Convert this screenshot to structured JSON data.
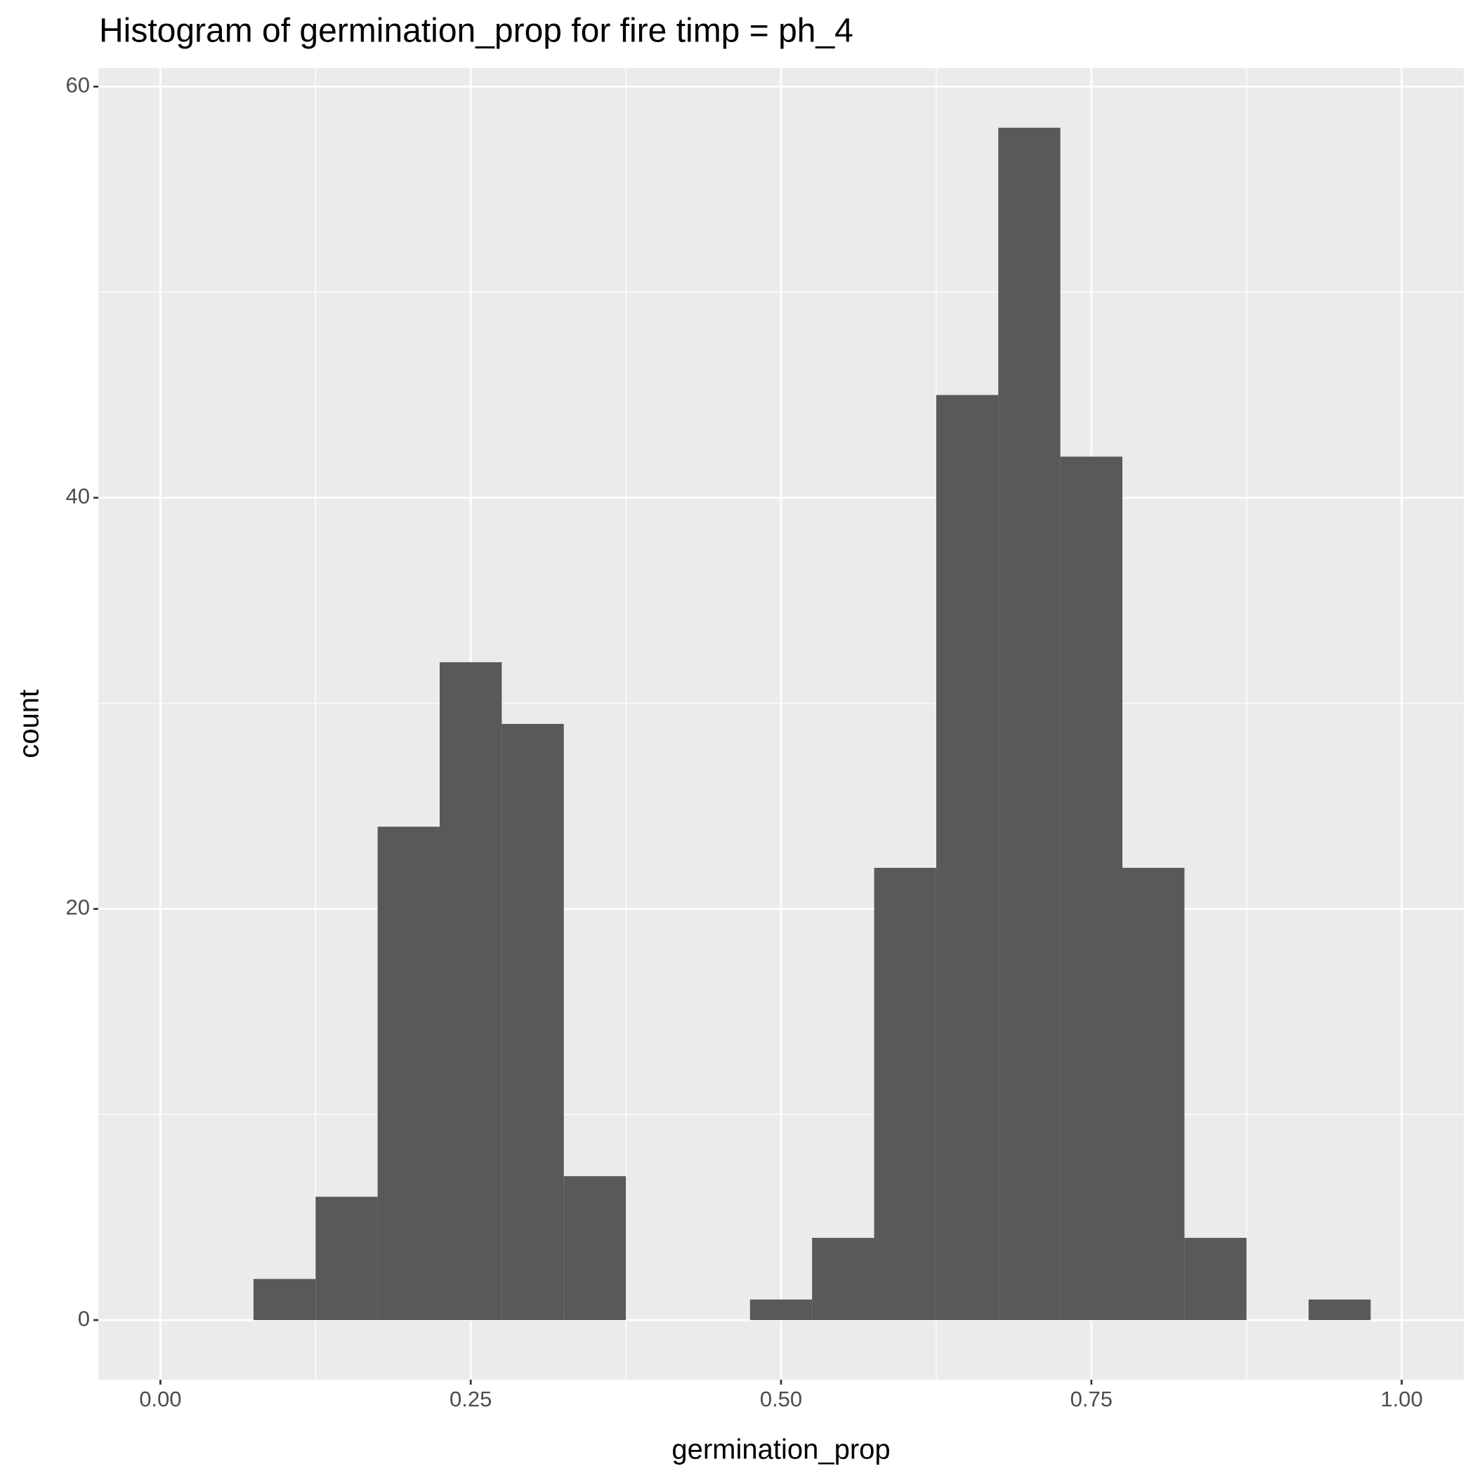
{
  "chart_data": {
    "type": "histogram",
    "title": "Histogram of germination_prop for fire timp =  ph_4",
    "x_label": "germination_prop",
    "y_label": "count",
    "bins": [
      0.075,
      0.125,
      0.175,
      0.225,
      0.275,
      0.325,
      0.375,
      0.425,
      0.475,
      0.525,
      0.575,
      0.625,
      0.675,
      0.725,
      0.775,
      0.825,
      0.875,
      0.925,
      0.975
    ],
    "counts": [
      2,
      6,
      24,
      32,
      29,
      7,
      0,
      0,
      1,
      4,
      22,
      45,
      58,
      42,
      22,
      4,
      0,
      1
    ],
    "color": "#595959",
    "xlim": [
      -0.05,
      1.05
    ],
    "xticks": [
      {
        "value": 0,
        "label": "0.00"
      },
      {
        "value": 0.25,
        "label": "0.25"
      },
      {
        "value": 0.5,
        "label": "0.50"
      },
      {
        "value": 0.75,
        "label": "0.75"
      },
      {
        "value": 1,
        "label": "1.00"
      }
    ],
    "ylim": [
      -2.9,
      60.9
    ],
    "yticks": [
      0,
      20,
      40,
      60
    ],
    "grid": true
  }
}
